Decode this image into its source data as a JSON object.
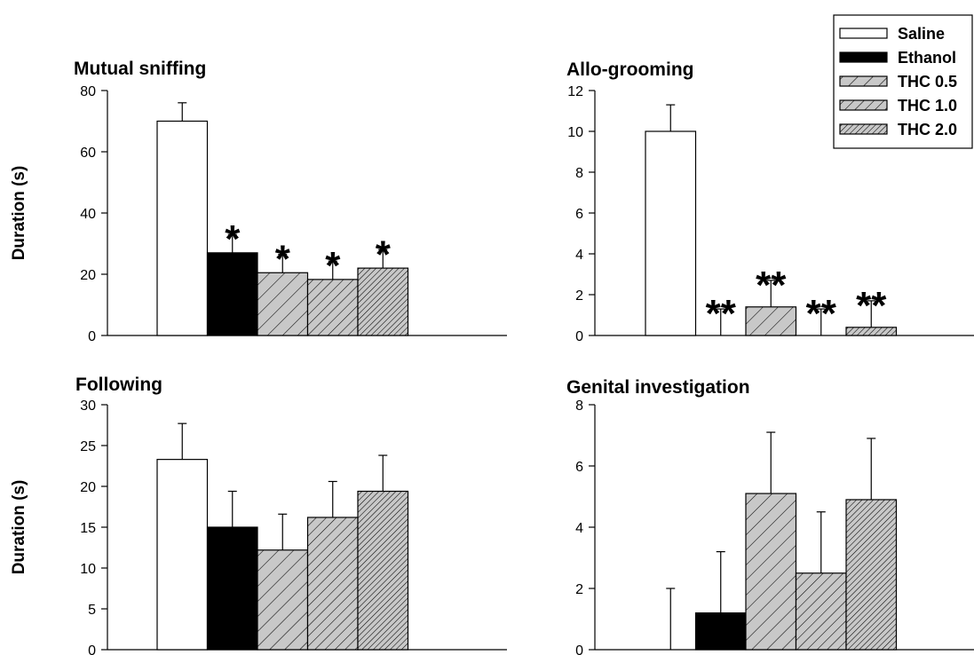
{
  "legend": {
    "entries": [
      {
        "label": "Saline",
        "fill": "white"
      },
      {
        "label": "Ethanol",
        "fill": "black"
      },
      {
        "label": "THC 0.5",
        "fill": "hatch-wide"
      },
      {
        "label": "THC 1.0",
        "fill": "hatch-medium"
      },
      {
        "label": "THC 2.0",
        "fill": "hatch-dense"
      }
    ],
    "placement": "top-right"
  },
  "colors": {
    "bar_outline": "#000000",
    "hatch_background": "#c8c8c8",
    "hatch_line": "#000000"
  },
  "chart_data": [
    {
      "type": "bar",
      "title": "Mutual sniffing",
      "ylabel": "Duration (s)",
      "categories": [
        "Saline",
        "Ethanol",
        "THC 0.5",
        "THC 1.0",
        "THC 2.0"
      ],
      "values": [
        70,
        27,
        20.5,
        18.3,
        22
      ],
      "errors": [
        6,
        6,
        6,
        6,
        6
      ],
      "significance": [
        "",
        "*",
        "*",
        "*",
        "*"
      ],
      "ylim": [
        0,
        80
      ],
      "yticks": [
        0,
        20,
        40,
        60,
        80
      ]
    },
    {
      "type": "bar",
      "title": "Allo-grooming",
      "ylabel": "",
      "categories": [
        "Saline",
        "Ethanol",
        "THC 0.5",
        "THC 1.0",
        "THC 2.0"
      ],
      "values": [
        10,
        0,
        1.4,
        0,
        0.4
      ],
      "errors": [
        1.3,
        1.3,
        1.3,
        1.3,
        1.3
      ],
      "significance": [
        "",
        "**",
        "**",
        "**",
        "**"
      ],
      "ylim": [
        0,
        12
      ],
      "yticks": [
        0,
        2,
        4,
        6,
        8,
        10,
        12
      ]
    },
    {
      "type": "bar",
      "title": "Following",
      "ylabel": "Duration (s)",
      "categories": [
        "Saline",
        "Ethanol",
        "THC 0.5",
        "THC 1.0",
        "THC 2.0"
      ],
      "values": [
        23.3,
        15,
        12.2,
        16.2,
        19.4
      ],
      "errors": [
        4.4,
        4.4,
        4.4,
        4.4,
        4.4
      ],
      "significance": [
        "",
        "",
        "",
        "",
        ""
      ],
      "ylim": [
        0,
        30
      ],
      "yticks": [
        0,
        5,
        10,
        15,
        20,
        25,
        30
      ]
    },
    {
      "type": "bar",
      "title": "Genital investigation",
      "ylabel": "",
      "categories": [
        "Saline",
        "Ethanol",
        "THC 0.5",
        "THC 1.0",
        "THC 2.0"
      ],
      "values": [
        0,
        1.2,
        5.1,
        2.5,
        4.9
      ],
      "errors": [
        2,
        2,
        2,
        2,
        2
      ],
      "significance": [
        "",
        "",
        "",
        "",
        ""
      ],
      "ylim": [
        0,
        8
      ],
      "yticks": [
        0,
        2,
        4,
        6,
        8
      ]
    }
  ]
}
